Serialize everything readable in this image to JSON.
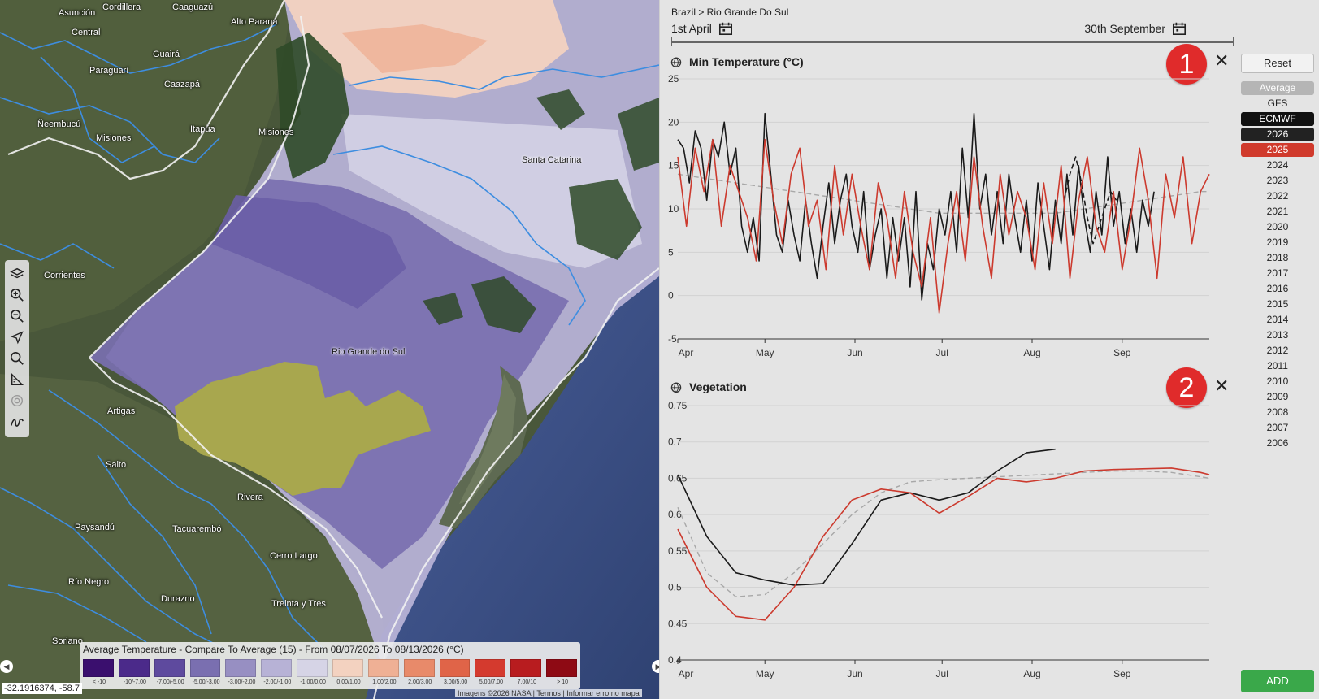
{
  "map": {
    "places": [
      {
        "name": "Asunción",
        "pos": "ps0"
      },
      {
        "name": "Cordillera"
      },
      {
        "name": "Caaguazú"
      },
      {
        "name": "Alto Paraná"
      },
      {
        "name": "Central"
      },
      {
        "name": "Guairá"
      },
      {
        "name": "Paraguarí"
      },
      {
        "name": "Caazapá"
      },
      {
        "name": "Ñeembucú"
      },
      {
        "name": "Misiones"
      },
      {
        "name": "Itapúa"
      },
      {
        "name": "Misiones"
      },
      {
        "name": "Santa Catarina"
      },
      {
        "name": "Corrientes"
      },
      {
        "name": "Rio Grande do Sul"
      },
      {
        "name": "Artigas"
      },
      {
        "name": "Salto"
      },
      {
        "name": "Rivera"
      },
      {
        "name": "Paysandú"
      },
      {
        "name": "Tacuarembó"
      },
      {
        "name": "Cerro Largo"
      },
      {
        "name": "Río Negro"
      },
      {
        "name": "Durazno"
      },
      {
        "name": "Treinta y Tres"
      },
      {
        "name": "Soriano"
      }
    ],
    "toolbar": [
      "layers-icon",
      "zoom-in-icon",
      "zoom-out-icon",
      "navigate-icon",
      "search-icon",
      "measure-icon",
      "target-icon",
      "draw-icon"
    ],
    "legend": {
      "title": "Average Temperature - Compare To Average (15) - From 08/07/2026 To 08/13/2026 (°C)",
      "items": [
        {
          "color": "#3a0f6e",
          "label": "< -10"
        },
        {
          "color": "#4b2a8a",
          "label": "-10/-7.00"
        },
        {
          "color": "#5e4a9e",
          "label": "-7.00/-5.00"
        },
        {
          "color": "#7a6fb0",
          "label": "-5.00/-3.00"
        },
        {
          "color": "#978fc2",
          "label": "-3.00/-2.00"
        },
        {
          "color": "#b7b2d6",
          "label": "-2.00/-1.00"
        },
        {
          "color": "#d6d4e6",
          "label": "-1.00/0.00"
        },
        {
          "color": "#f3d2c0",
          "label": "0.00/1.00"
        },
        {
          "color": "#efb095",
          "label": "1.00/2.00"
        },
        {
          "color": "#e88a6a",
          "label": "2.00/3.00"
        },
        {
          "color": "#e06448",
          "label": "3.00/5.00"
        },
        {
          "color": "#d43a2e",
          "label": "5.00/7.00"
        },
        {
          "color": "#b81c1f",
          "label": "7.00/10"
        },
        {
          "color": "#8e0a14",
          "label": "> 10"
        }
      ]
    },
    "coord": "-32.1916374, -58.7",
    "attribution": "Imagens ©2026 NASA  |  Termos  |  Informar erro no mapa"
  },
  "panel": {
    "breadcrumb": "Brazil > Rio Grande Do Sul",
    "date_start": "1st April",
    "date_end": "30th September",
    "reset_label": "Reset",
    "add_label": "ADD",
    "series": [
      {
        "label": "Average",
        "bg": "#b5b5b5",
        "fg": "#ffffff"
      },
      {
        "label": "GFS",
        "bg": "transparent",
        "fg": "#222222"
      },
      {
        "label": "ECMWF",
        "bg": "#111111",
        "fg": "#ffffff"
      },
      {
        "label": "2026",
        "bg": "#222222",
        "fg": "#ffffff"
      },
      {
        "label": "2025",
        "bg": "#d03a2c",
        "fg": "#ffffff"
      },
      {
        "label": "2024"
      },
      {
        "label": "2023"
      },
      {
        "label": "2022"
      },
      {
        "label": "2021"
      },
      {
        "label": "2020"
      },
      {
        "label": "2019"
      },
      {
        "label": "2018"
      },
      {
        "label": "2017"
      },
      {
        "label": "2016"
      },
      {
        "label": "2015"
      },
      {
        "label": "2014"
      },
      {
        "label": "2013"
      },
      {
        "label": "2012"
      },
      {
        "label": "2011"
      },
      {
        "label": "2010"
      },
      {
        "label": "2009"
      },
      {
        "label": "2008"
      },
      {
        "label": "2007"
      },
      {
        "label": "2006"
      }
    ],
    "colors": {
      "y2026": "#1a1a1a",
      "y2025": "#cc3a2e",
      "average": "#a8a8a8"
    }
  },
  "chart_data": [
    {
      "type": "line",
      "title": "Min Temperature (°C)",
      "badge": "1",
      "xlabel": "",
      "ylabel": "",
      "ylim": [
        -5,
        25
      ],
      "yticks": [
        25,
        20,
        15,
        10,
        5,
        0,
        -5
      ],
      "xticks": [
        "Apr",
        "May",
        "Jun",
        "Jul",
        "Aug",
        "Sep"
      ],
      "x_range_days": [
        0,
        183
      ],
      "grid": true,
      "series": [
        {
          "name": "2026",
          "style": "solid",
          "x": [
            0,
            2,
            4,
            6,
            8,
            10,
            12,
            14,
            16,
            18,
            20,
            22,
            24,
            26,
            28,
            30,
            32,
            34,
            36,
            38,
            40,
            42,
            44,
            46,
            48,
            50,
            52,
            54,
            56,
            58,
            60,
            62,
            64,
            66,
            68,
            70,
            72,
            74,
            76,
            78,
            80,
            82,
            84,
            86,
            88,
            90,
            92,
            94,
            96,
            98,
            100,
            102,
            104,
            106,
            108,
            110,
            112,
            114,
            116,
            118,
            120,
            122,
            124,
            126,
            128,
            130,
            132,
            134,
            136,
            138,
            140,
            142,
            144,
            146,
            148,
            150,
            152,
            154,
            156,
            158,
            160,
            162,
            164
          ],
          "values": [
            18,
            17,
            13,
            19,
            17,
            11,
            18,
            16,
            20,
            14,
            17,
            8,
            5,
            9,
            4,
            21,
            14,
            7,
            5,
            11,
            7,
            4,
            11,
            6,
            2,
            8,
            13,
            6,
            11,
            14,
            8,
            5,
            12,
            3,
            7,
            10,
            2,
            9,
            4,
            9,
            1,
            12,
            -0.5,
            6,
            3,
            10,
            7,
            12,
            5,
            17,
            9,
            21,
            10,
            14,
            7,
            12,
            6,
            14,
            9,
            5,
            11,
            4,
            13,
            8,
            3,
            11,
            6,
            14,
            7,
            15,
            9,
            5,
            12,
            7,
            16,
            8,
            12,
            6,
            10,
            5,
            11,
            8,
            12
          ]
        },
        {
          "name": "2026",
          "style": "dashed",
          "x": [
            133,
            135,
            137,
            139,
            141,
            143,
            145,
            147,
            149,
            151
          ],
          "values": [
            11,
            14,
            16,
            13,
            9,
            6,
            8,
            10,
            12,
            11
          ]
        },
        {
          "name": "2025",
          "style": "solid",
          "x": [
            0,
            3,
            6,
            9,
            12,
            15,
            18,
            21,
            24,
            27,
            30,
            33,
            36,
            39,
            42,
            45,
            48,
            51,
            54,
            57,
            60,
            63,
            66,
            69,
            72,
            75,
            78,
            81,
            84,
            87,
            90,
            93,
            96,
            99,
            102,
            105,
            108,
            111,
            114,
            117,
            120,
            123,
            126,
            129,
            132,
            135,
            138,
            141,
            144,
            147,
            150,
            153,
            156,
            159,
            162,
            165,
            168,
            171,
            174,
            177,
            180,
            183
          ],
          "values": [
            16,
            8,
            17,
            12,
            18,
            8,
            15,
            12,
            9,
            4,
            18,
            11,
            6,
            14,
            17,
            8,
            11,
            3,
            15,
            7,
            14,
            8,
            3,
            13,
            9,
            2,
            12,
            5,
            1,
            9,
            -2,
            6,
            12,
            4,
            16,
            8,
            2,
            14,
            7,
            12,
            9,
            3,
            13,
            6,
            15,
            2,
            11,
            16,
            8,
            5,
            12,
            3,
            9,
            17,
            11,
            2,
            14,
            9,
            16,
            6,
            12,
            14
          ]
        },
        {
          "name": "Average",
          "style": "dashed",
          "x": [
            0,
            10,
            20,
            30,
            40,
            50,
            60,
            70,
            80,
            90,
            100,
            110,
            120,
            130,
            140,
            150,
            160,
            170,
            180,
            183
          ],
          "values": [
            14,
            13.5,
            13,
            12.5,
            12,
            11.5,
            11,
            10.5,
            10,
            9.5,
            9.5,
            9.5,
            9.5,
            9.5,
            10,
            10.5,
            11,
            11.5,
            12,
            12
          ]
        }
      ]
    },
    {
      "type": "line",
      "title": "Vegetation",
      "badge": "2",
      "xlabel": "",
      "ylabel": "",
      "ylim": [
        0.4,
        0.75
      ],
      "yticks": [
        0.75,
        0.7,
        0.65,
        0.6,
        0.55,
        0.5,
        0.45,
        0.4
      ],
      "xticks": [
        "Apr",
        "May",
        "Jun",
        "Jul",
        "Aug",
        "Sep"
      ],
      "x_range_days": [
        0,
        183
      ],
      "grid": true,
      "series": [
        {
          "name": "2026",
          "style": "solid",
          "x": [
            0,
            10,
            20,
            30,
            40,
            50,
            60,
            70,
            80,
            90,
            100,
            110,
            120,
            130
          ],
          "values": [
            0.655,
            0.57,
            0.52,
            0.51,
            0.503,
            0.505,
            0.56,
            0.62,
            0.63,
            0.62,
            0.63,
            0.66,
            0.685,
            0.69
          ]
        },
        {
          "name": "2025",
          "style": "solid",
          "x": [
            0,
            10,
            20,
            30,
            40,
            50,
            60,
            70,
            80,
            90,
            100,
            110,
            120,
            130,
            140,
            150,
            160,
            170,
            180,
            183
          ],
          "values": [
            0.58,
            0.5,
            0.46,
            0.455,
            0.5,
            0.57,
            0.62,
            0.635,
            0.63,
            0.602,
            0.625,
            0.65,
            0.645,
            0.65,
            0.66,
            0.662,
            0.663,
            0.664,
            0.658,
            0.655
          ]
        },
        {
          "name": "Average",
          "style": "dashed",
          "x": [
            0,
            10,
            20,
            30,
            40,
            50,
            60,
            70,
            80,
            90,
            100,
            110,
            120,
            130,
            140,
            150,
            160,
            170,
            180,
            183
          ],
          "values": [
            0.61,
            0.52,
            0.487,
            0.49,
            0.52,
            0.56,
            0.6,
            0.63,
            0.645,
            0.648,
            0.65,
            0.652,
            0.654,
            0.656,
            0.658,
            0.66,
            0.66,
            0.658,
            0.652,
            0.65
          ]
        }
      ]
    }
  ]
}
